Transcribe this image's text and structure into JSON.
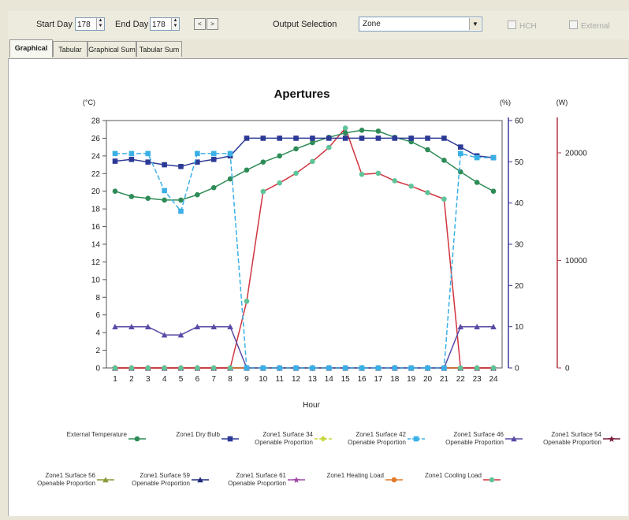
{
  "toolbar": {
    "start_day_label": "Start Day",
    "start_day_value": "178",
    "end_day_label": "End Day",
    "end_day_value": "178",
    "prev_symbol": "<",
    "next_symbol": ">",
    "output_selection_label": "Output Selection",
    "output_selection_value": "Zone",
    "hch_label": "HCH",
    "external_label": "External"
  },
  "tabs": [
    "Graphical",
    "Tabular",
    "Graphical Sum",
    "Tabular Sum"
  ],
  "colors": {
    "temperature_axis": "#4a4a4a",
    "percent_axis": "#3a3a9c",
    "power_axis": "#b43a44"
  },
  "chart_data": {
    "type": "line",
    "title": "Apertures",
    "xlabel": "Hour",
    "x": [
      1,
      2,
      3,
      4,
      5,
      6,
      7,
      8,
      9,
      10,
      11,
      12,
      13,
      14,
      15,
      16,
      17,
      18,
      19,
      20,
      21,
      22,
      23,
      24
    ],
    "axes": {
      "left": {
        "unit": "(°C)",
        "ylim": [
          0,
          28
        ],
        "ticks": [
          "0",
          "2",
          "4",
          "6",
          "8",
          "10",
          "12",
          "14",
          "16",
          "18",
          "20",
          "22",
          "24",
          "26",
          "28"
        ]
      },
      "right1": {
        "unit": "(%)",
        "ylim": [
          0,
          60
        ],
        "ticks": [
          "0",
          "10",
          "20",
          "30",
          "40",
          "50",
          "60"
        ]
      },
      "right2": {
        "unit": "(W)",
        "ylim": [
          0,
          23000
        ],
        "ticks": [
          "0",
          "10000",
          "20000"
        ]
      }
    },
    "series": [
      {
        "name": "External Temperature",
        "axis": "left",
        "color": "#2e8b57",
        "marker": "circle",
        "dash": false,
        "values": [
          20.0,
          19.4,
          19.2,
          19.0,
          19.0,
          19.6,
          20.4,
          21.4,
          22.4,
          23.3,
          24.0,
          24.8,
          25.5,
          26.1,
          26.6,
          26.9,
          26.8,
          26.1,
          25.6,
          24.7,
          23.5,
          22.2,
          21.0,
          20.0
        ]
      },
      {
        "name": "Zone1 Dry Bulb",
        "axis": "left",
        "color": "#2c3a96",
        "marker": "square",
        "dash": false,
        "values": [
          23.4,
          23.6,
          23.3,
          23.0,
          22.8,
          23.3,
          23.6,
          24.0,
          26.0,
          26.0,
          26.0,
          26.0,
          26.0,
          26.0,
          26.0,
          26.0,
          26.0,
          26.0,
          26.0,
          26.0,
          26.0,
          25.0,
          24.0,
          23.8
        ]
      },
      {
        "name": "Zone1 Surface 34 Openable Proportion",
        "axis": "right1",
        "color": "#c8d63c",
        "marker": "diamond",
        "dash": true,
        "values": [
          0,
          0,
          0,
          0,
          0,
          0,
          0,
          0,
          0,
          0,
          0,
          0,
          0,
          0,
          0,
          0,
          0,
          0,
          0,
          0,
          0,
          0,
          0,
          0
        ]
      },
      {
        "name": "Zone1 Surface 42 Openable Proportion",
        "axis": "right1",
        "color": "#3ab0e6",
        "marker": "square",
        "dash": true,
        "values": [
          52,
          52,
          52,
          43,
          38,
          52,
          52,
          52,
          0,
          0,
          0,
          0,
          0,
          0,
          0,
          0,
          0,
          0,
          0,
          0,
          0,
          52,
          51,
          51
        ]
      },
      {
        "name": "Zone1 Surface 46 Openable Proportion",
        "axis": "right1",
        "color": "#5a4aa6",
        "marker": "triangle",
        "dash": false,
        "values": [
          10,
          10,
          10,
          8,
          8,
          10,
          10,
          10,
          0,
          0,
          0,
          0,
          0,
          0,
          0,
          0,
          0,
          0,
          0,
          0,
          0,
          10,
          10,
          10
        ]
      },
      {
        "name": "Zone1 Surface 54 Openable Proportion",
        "axis": "right1",
        "color": "#7a1e3a",
        "marker": "star",
        "dash": false,
        "values": [
          0,
          0,
          0,
          0,
          0,
          0,
          0,
          0,
          0,
          0,
          0,
          0,
          0,
          0,
          0,
          0,
          0,
          0,
          0,
          0,
          0,
          0,
          0,
          0
        ]
      },
      {
        "name": "Zone1 Surface 56 Openable Proportion",
        "axis": "right1",
        "color": "#8a9a3a",
        "marker": "triangle",
        "dash": false,
        "values": [
          0,
          0,
          0,
          0,
          0,
          0,
          0,
          0,
          0,
          0,
          0,
          0,
          0,
          0,
          0,
          0,
          0,
          0,
          0,
          0,
          0,
          0,
          0,
          0
        ]
      },
      {
        "name": "Zone1 Surface 59 Openable Proportion",
        "axis": "right1",
        "color": "#1e2a7a",
        "marker": "triangle",
        "dash": false,
        "values": [
          0,
          0,
          0,
          0,
          0,
          0,
          0,
          0,
          0,
          0,
          0,
          0,
          0,
          0,
          0,
          0,
          0,
          0,
          0,
          0,
          0,
          0,
          0,
          0
        ]
      },
      {
        "name": "Zone1 Surface 61 Openable Proportion",
        "axis": "right1",
        "color": "#a04aa8",
        "marker": "star",
        "dash": false,
        "values": [
          0,
          0,
          0,
          0,
          0,
          0,
          0,
          0,
          0,
          0,
          0,
          0,
          0,
          0,
          0,
          0,
          0,
          0,
          0,
          0,
          0,
          0,
          0,
          0
        ]
      },
      {
        "name": "Zone1 Heating Load",
        "axis": "right2",
        "color": "#e07a2a",
        "marker": "circle",
        "dash": false,
        "values": [
          0,
          0,
          0,
          0,
          0,
          0,
          0,
          0,
          0,
          0,
          0,
          0,
          0,
          0,
          0,
          0,
          0,
          0,
          0,
          0,
          0,
          0,
          0,
          0
        ]
      },
      {
        "name": "Zone1 Cooling Load",
        "axis": "right2",
        "color": "#d0343f",
        "marker": "circle",
        "dash": false,
        "markerColor": "#5fc39a",
        "values": [
          0,
          0,
          0,
          0,
          0,
          0,
          0,
          0,
          6200,
          16400,
          17200,
          18100,
          19200,
          20500,
          22300,
          18000,
          18100,
          17400,
          16900,
          16300,
          15700,
          0,
          0,
          0
        ]
      }
    ]
  }
}
